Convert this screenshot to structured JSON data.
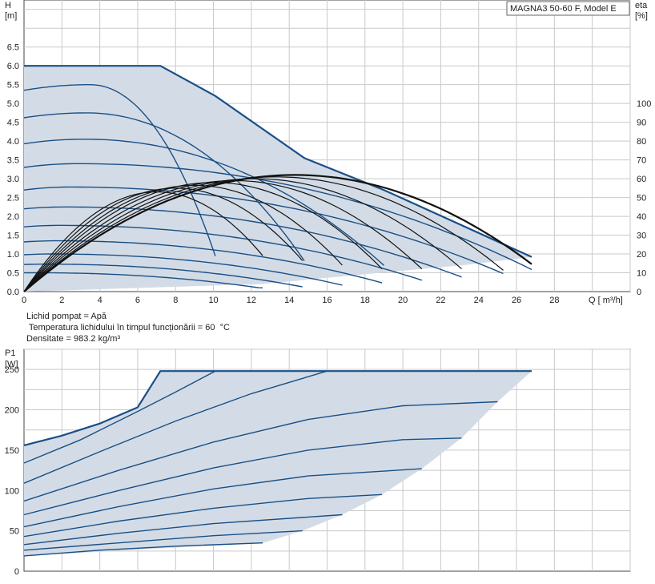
{
  "chart_data": [
    {
      "type": "line",
      "title": "MAGNA3 50-60 F, Model E",
      "ylabel_line1": "H",
      "ylabel_line2": "[m]",
      "y2label_line1": "eta",
      "y2label_line2": "[%]",
      "xlabel": "Q [ m³/h]",
      "xlim": [
        0,
        32
      ],
      "ylim": [
        0,
        7.75
      ],
      "y2lim": [
        0,
        155
      ],
      "x_ticks": [
        0,
        2,
        4,
        6,
        8,
        10,
        12,
        14,
        16,
        18,
        20,
        22,
        24,
        26,
        28
      ],
      "y_ticks": [
        "0.0",
        "0.5",
        "1.0",
        "1.5",
        "2.0",
        "2.5",
        "3.0",
        "3.5",
        "4.0",
        "4.5",
        "5.0",
        "5.5",
        "6.0",
        "6.5"
      ],
      "y2_ticks": [
        "0",
        "10",
        "20",
        "30",
        "40",
        "50",
        "60",
        "70",
        "80",
        "90",
        "100"
      ],
      "grid": true,
      "envelope": [
        [
          0,
          6.0
        ],
        [
          7.2,
          6.0
        ],
        [
          10.1,
          5.2
        ],
        [
          14.8,
          3.55
        ],
        [
          19.0,
          2.7
        ],
        [
          26.8,
          0.92
        ],
        [
          23.5,
          0.72
        ],
        [
          12.5,
          0.2
        ],
        [
          0,
          0
        ]
      ],
      "head_series": [
        {
          "h0": 5.35,
          "hmax": 5.5,
          "qpeak": 3.5,
          "qend": 10.1
        },
        {
          "h0": 4.62,
          "hmax": 4.75,
          "qpeak": 3.3,
          "qend": 14.8
        },
        {
          "h0": 3.93,
          "hmax": 4.05,
          "qpeak": 3.2,
          "qend": 19.0
        },
        {
          "h0": 3.3,
          "hmax": 3.4,
          "qpeak": 2.8,
          "qend": 26.8
        },
        {
          "h0": 2.7,
          "hmax": 2.78,
          "qpeak": 2.5,
          "qend": 25.3
        },
        {
          "h0": 2.2,
          "hmax": 2.25,
          "qpeak": 2.2,
          "qend": 23.1
        },
        {
          "h0": 1.72,
          "hmax": 1.76,
          "qpeak": 1.9,
          "qend": 21.0
        },
        {
          "h0": 1.32,
          "hmax": 1.35,
          "qpeak": 1.7,
          "qend": 18.9
        },
        {
          "h0": 0.98,
          "hmax": 1.0,
          "qpeak": 1.5,
          "qend": 16.8
        },
        {
          "h0": 0.72,
          "hmax": 0.73,
          "qpeak": 1.2,
          "qend": 14.7
        },
        {
          "h0": 0.5,
          "hmax": 0.5,
          "qpeak": 0.8,
          "qend": 12.6
        }
      ],
      "eta_series": [
        {
          "peak": 62.0,
          "qpeak": 14.3,
          "qend": 26.8
        },
        {
          "peak": 61.0,
          "qpeak": 13.3,
          "qend": 25.3
        },
        {
          "peak": 60.0,
          "qpeak": 12.2,
          "qend": 23.1
        },
        {
          "peak": 59.0,
          "qpeak": 11.1,
          "qend": 21.0
        },
        {
          "peak": 58.0,
          "qpeak": 10.0,
          "qend": 18.9
        },
        {
          "peak": 56.5,
          "qpeak": 9.0,
          "qend": 16.8
        },
        {
          "peak": 55.0,
          "qpeak": 8.0,
          "qend": 14.7
        },
        {
          "peak": 53.0,
          "qpeak": 7.0,
          "qend": 12.6
        }
      ]
    },
    {
      "type": "line",
      "ylabel_line1": "P1",
      "ylabel_line2": "[W]",
      "xlim": [
        0,
        32
      ],
      "ylim": [
        0,
        275
      ],
      "y_ticks": [
        "0",
        "50",
        "100",
        "150",
        "200",
        "250"
      ],
      "grid": true,
      "envelope": [
        [
          0,
          156
        ],
        [
          2,
          168
        ],
        [
          4,
          183
        ],
        [
          6,
          203
        ],
        [
          7.2,
          248
        ],
        [
          26.8,
          248
        ],
        [
          25,
          210
        ],
        [
          23.1,
          165
        ],
        [
          21,
          127
        ],
        [
          18.9,
          95
        ],
        [
          16.8,
          70
        ],
        [
          14.7,
          50
        ],
        [
          12.6,
          35
        ],
        [
          0,
          19
        ]
      ],
      "power_series": [
        {
          "pts": [
            [
              0,
              156
            ],
            [
              2,
              168
            ],
            [
              4,
              183
            ],
            [
              6,
              203
            ],
            [
              7.2,
              248
            ]
          ]
        },
        {
          "pts": [
            [
              0,
              134
            ],
            [
              3,
              163
            ],
            [
              6,
              198
            ],
            [
              8,
              222
            ],
            [
              10.1,
              248
            ]
          ]
        },
        {
          "pts": [
            [
              0,
              109
            ],
            [
              4,
              148
            ],
            [
              8,
              186
            ],
            [
              12,
              220
            ],
            [
              16,
              248
            ]
          ]
        },
        {
          "pts": [
            [
              0,
              87
            ],
            [
              5,
              125
            ],
            [
              10,
              160
            ],
            [
              15,
              188
            ],
            [
              20,
              205
            ],
            [
              25,
              210
            ]
          ]
        },
        {
          "pts": [
            [
              0,
              70
            ],
            [
              5,
              100
            ],
            [
              10,
              128
            ],
            [
              15,
              150
            ],
            [
              20,
              163
            ],
            [
              23.1,
              165
            ]
          ]
        },
        {
          "pts": [
            [
              0,
              55
            ],
            [
              5,
              80
            ],
            [
              10,
              102
            ],
            [
              15,
              118
            ],
            [
              21,
              127
            ]
          ]
        },
        {
          "pts": [
            [
              0,
              43
            ],
            [
              5,
              62
            ],
            [
              10,
              78
            ],
            [
              15,
              90
            ],
            [
              18.9,
              95
            ]
          ]
        },
        {
          "pts": [
            [
              0,
              33
            ],
            [
              5,
              47
            ],
            [
              10,
              59
            ],
            [
              16.8,
              70
            ]
          ]
        },
        {
          "pts": [
            [
              0,
              26
            ],
            [
              5,
              35
            ],
            [
              10,
              44
            ],
            [
              14.7,
              50
            ]
          ]
        },
        {
          "pts": [
            [
              0,
              19
            ],
            [
              4,
              26
            ],
            [
              8,
              31
            ],
            [
              12.6,
              35
            ]
          ]
        }
      ]
    }
  ],
  "fluid": {
    "line1": "Lichid pompat = Apă",
    "line2": " Temperatura lichidului în timpul funcționării = 60  °C",
    "line3": "Densitate = 983.2  kg/m³"
  },
  "colors": {
    "curve": "#1a4f86",
    "envelope_fill": "#d3dce6",
    "eta": "#111111",
    "grid": "#c9c9c9"
  }
}
